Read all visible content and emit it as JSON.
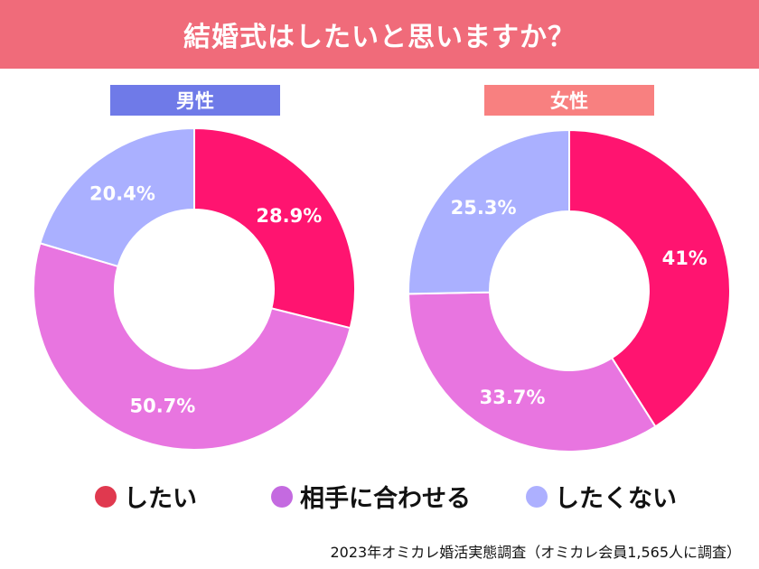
{
  "title": "結婚式はしたいと思いますか？",
  "source": "2023年オミカレ婚活実態調査（オミカレ会員1,565人に調査）",
  "legend": [
    {
      "label": "したい",
      "color": "#e0394f"
    },
    {
      "label": "相手に合わせる",
      "color": "#c46ae0"
    },
    {
      "label": "したくない",
      "color": "#adb0ff"
    }
  ],
  "chart_data": [
    {
      "type": "pie",
      "title": "男性",
      "title_color": "#6f7ae8",
      "donut": true,
      "categories": [
        "したい",
        "相手に合わせる",
        "したくない"
      ],
      "values": [
        28.9,
        50.7,
        20.4
      ],
      "labels": [
        "28.9%",
        "50.7%",
        "20.4%"
      ],
      "colors": [
        "#ff1470",
        "#e875e0",
        "#aab0ff"
      ]
    },
    {
      "type": "pie",
      "title": "女性",
      "title_color": "#f88080",
      "donut": true,
      "categories": [
        "したい",
        "相手に合わせる",
        "したくない"
      ],
      "values": [
        41,
        33.7,
        25.3
      ],
      "labels": [
        "41%",
        "33.7%",
        "25.3%"
      ],
      "colors": [
        "#ff1470",
        "#e875e0",
        "#aab0ff"
      ]
    }
  ]
}
